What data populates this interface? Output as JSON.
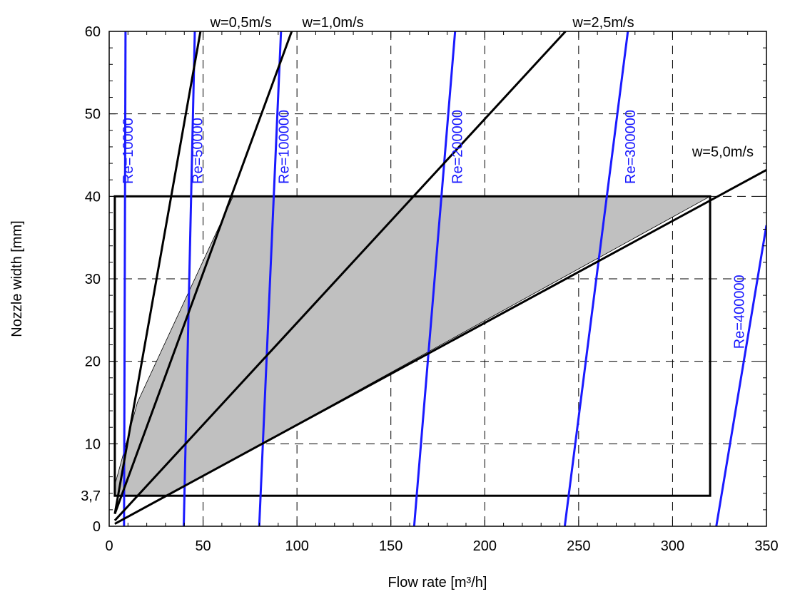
{
  "chart_data": {
    "type": "line",
    "xlabel": "Flow rate [m³/h]",
    "ylabel": "Nozzle width [mm]",
    "xlim": [
      0,
      350
    ],
    "ylim": [
      0,
      60
    ],
    "x_ticks": [
      0,
      50,
      100,
      150,
      200,
      250,
      300,
      350
    ],
    "x_tick_labels": [
      "0",
      "50",
      "100",
      "150",
      "200",
      "250",
      "300",
      "350"
    ],
    "y_ticks": [
      0,
      3.7,
      10,
      20,
      30,
      40,
      50,
      60
    ],
    "y_tick_labels": [
      "0",
      "3,7",
      "10",
      "20",
      "30",
      "40",
      "50",
      "60"
    ],
    "grid": true,
    "colors": {
      "velocity_line": "#000000",
      "reynolds_line": "#1a1aff",
      "region_fill": "#c0c0c0"
    },
    "operating_window": {
      "x": [
        3,
        320
      ],
      "y": [
        3.7,
        40
      ]
    },
    "shaded_region": [
      [
        3,
        3.7
      ],
      [
        3,
        5
      ],
      [
        15,
        15
      ],
      [
        66,
        40
      ],
      [
        320,
        40
      ],
      [
        31,
        3.7
      ]
    ],
    "velocity_lines": [
      {
        "label": "w=0,5m/s",
        "points": [
          [
            3,
            1.5
          ],
          [
            49,
            60.5
          ]
        ]
      },
      {
        "label": "w=1,0m/s",
        "points": [
          [
            3,
            1.5
          ],
          [
            98,
            60.5
          ]
        ]
      },
      {
        "label": "w=2,5m/s",
        "points": [
          [
            3,
            0.7
          ],
          [
            243,
            60
          ]
        ]
      },
      {
        "label": "w=5,0m/s",
        "points": [
          [
            3,
            0.3
          ],
          [
            350,
            43.2
          ]
        ]
      }
    ],
    "reynolds_lines": [
      {
        "label": "Re=10000",
        "points": [
          [
            7.9,
            0
          ],
          [
            8.7,
            60
          ]
        ]
      },
      {
        "label": "Re=50000",
        "points": [
          [
            39.7,
            0
          ],
          [
            45.6,
            60
          ]
        ]
      },
      {
        "label": "Re=100000",
        "points": [
          [
            79.9,
            0
          ],
          [
            91.5,
            60
          ]
        ]
      },
      {
        "label": "Re=200000",
        "points": [
          [
            162.4,
            0
          ],
          [
            184.2,
            60
          ]
        ]
      },
      {
        "label": "Re=300000",
        "points": [
          [
            242.6,
            0
          ],
          [
            276.2,
            60
          ]
        ]
      },
      {
        "label": "Re=400000",
        "points": [
          [
            323.3,
            0
          ],
          [
            350,
            36.5
          ]
        ]
      }
    ]
  }
}
